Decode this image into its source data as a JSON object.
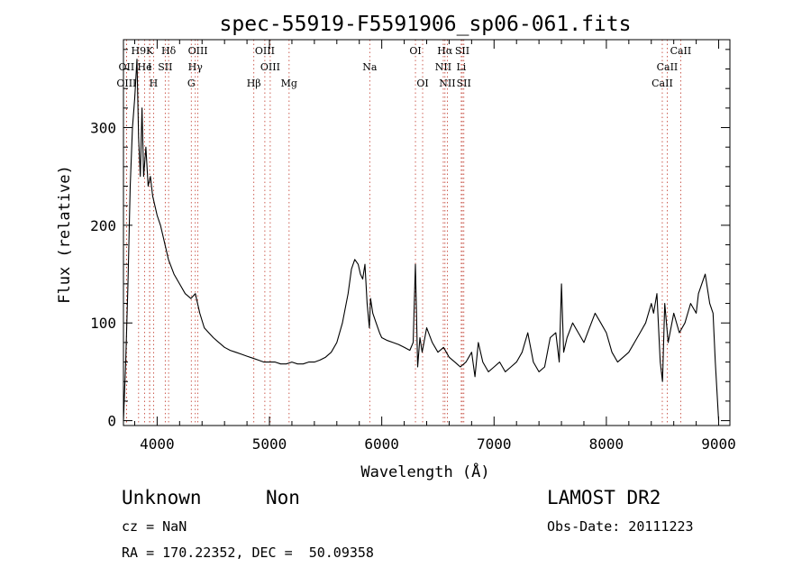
{
  "chart_data": {
    "type": "line",
    "title": "spec-55919-F5591906_sp06-061.fits",
    "xlabel": "Wavelength (Å)",
    "ylabel": "Flux (relative)",
    "xlim": [
      3700,
      9100
    ],
    "ylim": [
      -5,
      390
    ],
    "x_ticks": [
      4000,
      5000,
      6000,
      7000,
      8000,
      9000
    ],
    "y_ticks": [
      0,
      100,
      200,
      300
    ],
    "grid": false,
    "series": [
      {
        "x": [
          3700,
          3720,
          3740,
          3760,
          3780,
          3800,
          3820,
          3835,
          3850,
          3865,
          3880,
          3900,
          3920,
          3940,
          3960,
          3980,
          4000,
          4030,
          4060,
          4100,
          4150,
          4200,
          4250,
          4300,
          4340,
          4380,
          4420,
          4460,
          4500,
          4550,
          4600,
          4650,
          4700,
          4750,
          4800,
          4850,
          4900,
          4950,
          5000,
          5050,
          5100,
          5150,
          5200,
          5250,
          5300,
          5350,
          5400,
          5450,
          5500,
          5550,
          5600,
          5650,
          5700,
          5730,
          5760,
          5790,
          5810,
          5830,
          5850,
          5870,
          5890,
          5900,
          5920,
          5950,
          5980,
          6000,
          6050,
          6100,
          6150,
          6200,
          6250,
          6280,
          6300,
          6320,
          6340,
          6360,
          6400,
          6450,
          6500,
          6550,
          6600,
          6650,
          6700,
          6750,
          6800,
          6830,
          6860,
          6900,
          6950,
          7000,
          7050,
          7100,
          7150,
          7200,
          7250,
          7300,
          7350,
          7400,
          7450,
          7500,
          7550,
          7580,
          7600,
          7620,
          7650,
          7700,
          7750,
          7800,
          7850,
          7900,
          7950,
          8000,
          8050,
          8100,
          8150,
          8200,
          8250,
          8300,
          8350,
          8400,
          8420,
          8450,
          8480,
          8500,
          8520,
          8550,
          8600,
          8650,
          8700,
          8750,
          8800,
          8820,
          8850,
          8880,
          8900,
          8920,
          8950,
          8970,
          9000
        ],
        "y": [
          0,
          60,
          140,
          240,
          300,
          330,
          370,
          290,
          250,
          320,
          250,
          280,
          240,
          250,
          230,
          220,
          210,
          200,
          185,
          165,
          150,
          140,
          130,
          125,
          130,
          110,
          95,
          90,
          85,
          80,
          75,
          72,
          70,
          68,
          66,
          64,
          62,
          60,
          60,
          60,
          58,
          58,
          60,
          58,
          58,
          60,
          60,
          62,
          65,
          70,
          80,
          100,
          130,
          155,
          165,
          160,
          150,
          145,
          160,
          120,
          95,
          125,
          110,
          100,
          90,
          85,
          82,
          80,
          78,
          75,
          72,
          80,
          160,
          55,
          85,
          70,
          95,
          80,
          70,
          75,
          65,
          60,
          55,
          60,
          70,
          45,
          80,
          60,
          50,
          55,
          60,
          50,
          55,
          60,
          70,
          90,
          60,
          50,
          55,
          85,
          90,
          60,
          140,
          70,
          85,
          100,
          90,
          80,
          95,
          110,
          100,
          90,
          70,
          60,
          65,
          70,
          80,
          90,
          100,
          120,
          110,
          130,
          60,
          40,
          120,
          80,
          110,
          90,
          100,
          120,
          110,
          130,
          140,
          150,
          135,
          120,
          110,
          60,
          0
        ]
      }
    ],
    "lines": [
      {
        "label": "H9",
        "x": 3835,
        "row": 0
      },
      {
        "label": "K",
        "x": 3934,
        "row": 0
      },
      {
        "label": "Hδ",
        "x": 4102,
        "row": 0
      },
      {
        "label": "OIII",
        "x": 4363,
        "row": 0
      },
      {
        "label": "OIII",
        "x": 4959,
        "row": 0
      },
      {
        "label": "OI",
        "x": 6300,
        "row": 0
      },
      {
        "label": "Hα",
        "x": 6563,
        "row": 0
      },
      {
        "label": "SII",
        "x": 6717,
        "row": 0
      },
      {
        "label": "CaII",
        "x": 8662,
        "row": 0
      },
      {
        "label": "OII",
        "x": 3727,
        "row": 1
      },
      {
        "label": "He",
        "x": 3889,
        "row": 1
      },
      {
        "label": "I",
        "x": 3933,
        "row": 1
      },
      {
        "label": "SII",
        "x": 4072,
        "row": 1
      },
      {
        "label": "Hγ",
        "x": 4340,
        "row": 1
      },
      {
        "label": "OIII",
        "x": 5007,
        "row": 1
      },
      {
        "label": "Na",
        "x": 5893,
        "row": 1
      },
      {
        "label": "NII",
        "x": 6548,
        "row": 1
      },
      {
        "label": "Li",
        "x": 6708,
        "row": 1
      },
      {
        "label": "CaII",
        "x": 8542,
        "row": 1
      },
      {
        "label": "OIII",
        "x": 3727,
        "row": 2
      },
      {
        "label": "H",
        "x": 3968,
        "row": 2
      },
      {
        "label": "G",
        "x": 4304,
        "row": 2
      },
      {
        "label": "Hβ",
        "x": 4861,
        "row": 2
      },
      {
        "label": "Mg",
        "x": 5175,
        "row": 2
      },
      {
        "label": "OI",
        "x": 6364,
        "row": 2
      },
      {
        "label": "NII",
        "x": 6584,
        "row": 2
      },
      {
        "label": "SII",
        "x": 6731,
        "row": 2
      },
      {
        "label": "CaII",
        "x": 8498,
        "row": 2
      }
    ]
  },
  "info": {
    "class": "Unknown",
    "subclass": "Non",
    "survey": "LAMOST DR2",
    "cz": "cz = NaN",
    "obs_date": "Obs-Date: 20111223",
    "coords": "RA = 170.22352, DEC =  50.09358"
  }
}
